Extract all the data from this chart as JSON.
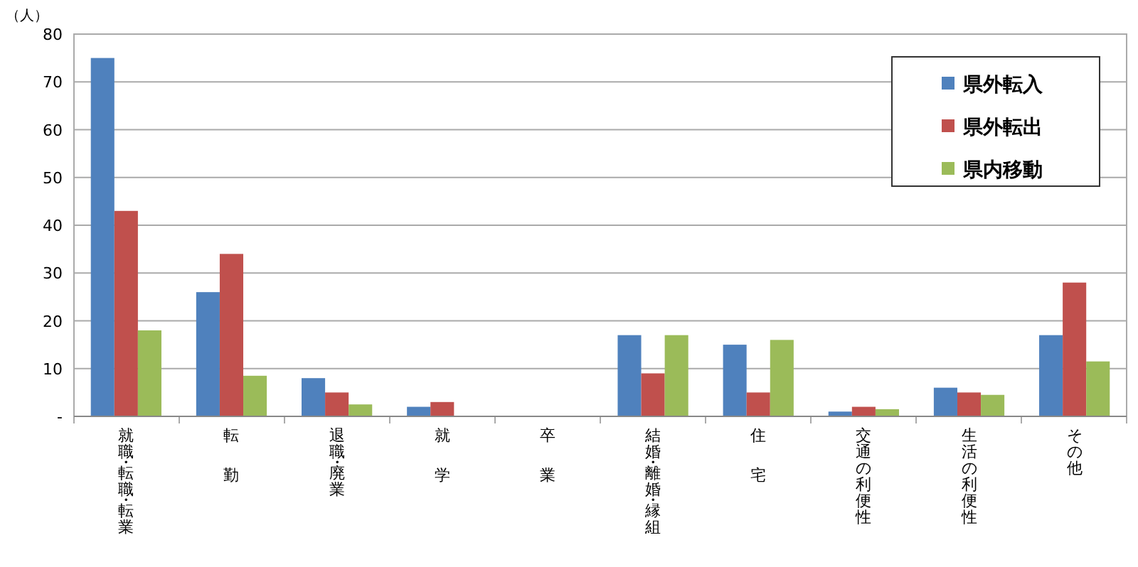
{
  "chart_data": {
    "type": "bar",
    "ylabel": "（人）",
    "categories": [
      "就職・転職・転業",
      "転勤",
      "退職・廃業",
      "就学",
      "卒業",
      "結婚・離婚・縁組",
      "住宅",
      "交通の利便性",
      "生活の利便性",
      "その他"
    ],
    "series": [
      {
        "name": "県外転入",
        "color": "#4f81bd",
        "values": [
          75,
          26,
          8,
          2,
          0,
          17,
          15,
          1,
          6,
          17
        ]
      },
      {
        "name": "県外転出",
        "color": "#c0504d",
        "values": [
          43,
          34,
          5,
          3,
          0,
          9,
          5,
          2,
          5,
          28
        ]
      },
      {
        "name": "県内移動",
        "color": "#9bbb59",
        "values": [
          18,
          8.5,
          2.5,
          0,
          0,
          17,
          16,
          1.5,
          4.5,
          11.5
        ]
      }
    ],
    "ylim": [
      0,
      80
    ],
    "yticks": [
      {
        "value": 0,
        "label": "-"
      },
      10,
      20,
      30,
      40,
      50,
      60,
      70,
      80
    ],
    "grid": "y",
    "legend": "top right"
  }
}
